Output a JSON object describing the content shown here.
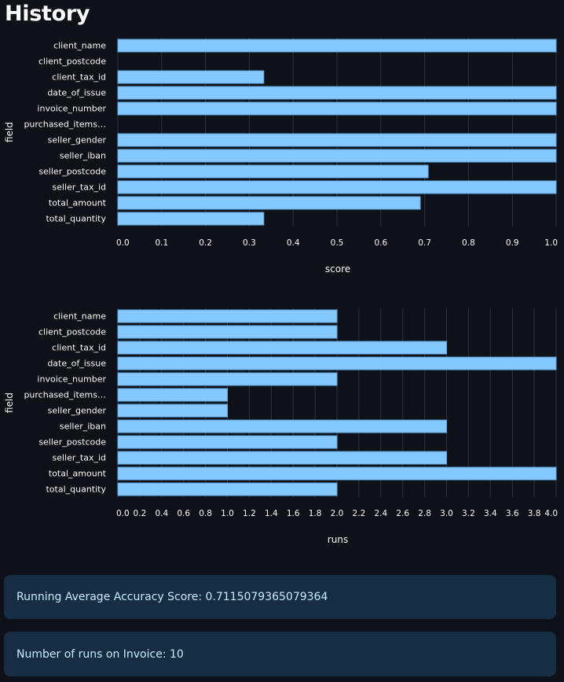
{
  "page": {
    "title": "History"
  },
  "colors": {
    "background": "#0e1117",
    "bar_fill": "#83c9ff",
    "bar_stroke": "#63a8e0",
    "grid": "#31333f",
    "text": "#fafafa",
    "alert_bg": "#172d43",
    "alert_text": "#c7ebff"
  },
  "chart_data": [
    {
      "type": "bar",
      "orientation": "horizontal",
      "categories": [
        "client_name",
        "client_postcode",
        "client_tax_id",
        "date_of_issue",
        "invoice_number",
        "purchased_items…",
        "seller_gender",
        "seller_iban",
        "seller_postcode",
        "seller_tax_id",
        "total_amount",
        "total_quantity"
      ],
      "values": [
        1.0,
        0.0,
        0.333,
        1.0,
        1.0,
        0.0,
        1.0,
        1.0,
        0.708,
        1.0,
        0.69,
        0.333
      ],
      "xlabel": "score",
      "ylabel": "field",
      "xlim": [
        0,
        1
      ],
      "xticks": [
        "0.0",
        "0.1",
        "0.2",
        "0.3",
        "0.4",
        "0.5",
        "0.6",
        "0.7",
        "0.8",
        "0.9",
        "1.0"
      ],
      "grid": "vertical"
    },
    {
      "type": "bar",
      "orientation": "horizontal",
      "categories": [
        "client_name",
        "client_postcode",
        "client_tax_id",
        "date_of_issue",
        "invoice_number",
        "purchased_items…",
        "seller_gender",
        "seller_iban",
        "seller_postcode",
        "seller_tax_id",
        "total_amount",
        "total_quantity"
      ],
      "values": [
        2,
        2,
        3,
        4,
        2,
        1,
        1,
        3,
        2,
        3,
        4,
        2
      ],
      "xlabel": "runs",
      "ylabel": "field",
      "xlim": [
        0,
        4
      ],
      "xticks": [
        "0.0",
        "0.2",
        "0.4",
        "0.6",
        "0.8",
        "1.0",
        "1.2",
        "1.4",
        "1.6",
        "1.8",
        "2.0",
        "2.2",
        "2.4",
        "2.6",
        "2.8",
        "3.0",
        "3.2",
        "3.4",
        "3.6",
        "3.8",
        "4.0"
      ],
      "grid": "vertical"
    }
  ],
  "alerts": {
    "average_score": "Running Average Accuracy Score: 0.7115079365079364",
    "run_count": "Number of runs on Invoice: 10"
  }
}
